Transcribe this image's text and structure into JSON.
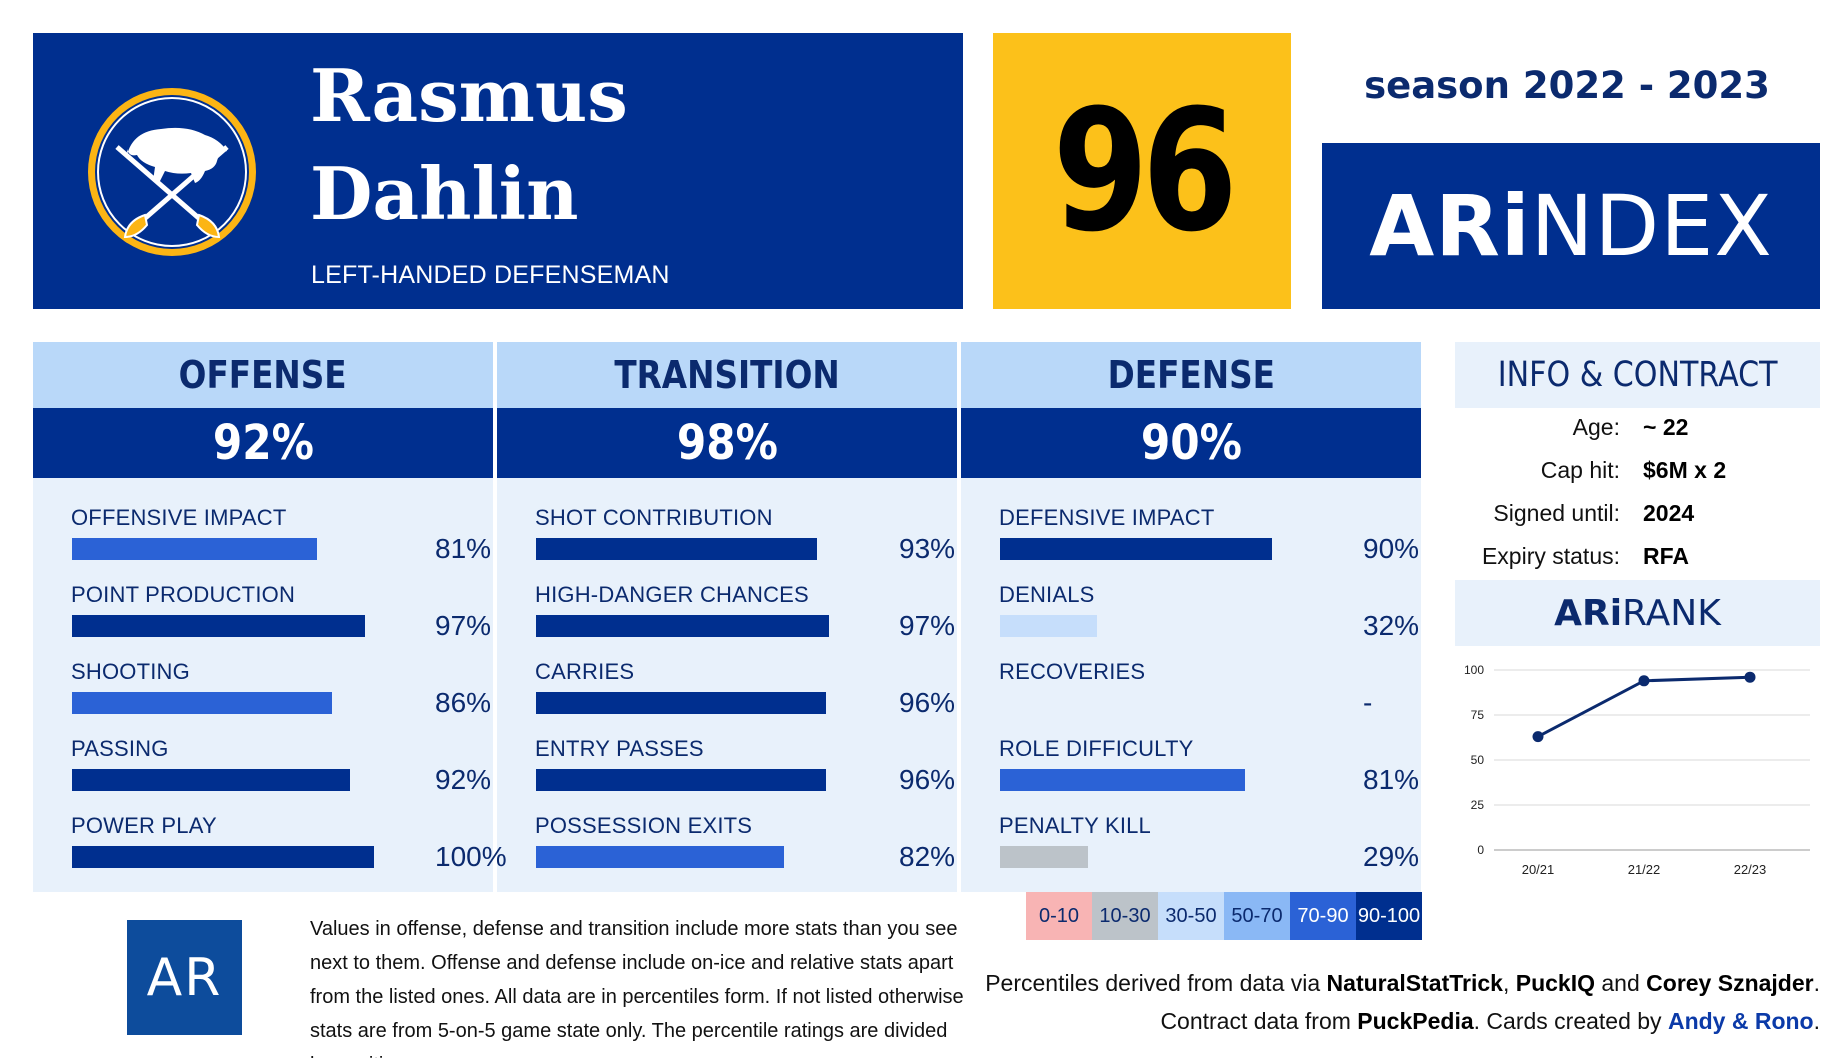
{
  "player": {
    "first_name": "Rasmus",
    "last_name": "Dahlin",
    "position": "LEFT-HANDED DEFENSEMAN"
  },
  "score": "96",
  "season": "season 2022 - 2023",
  "brand": {
    "ari": "ARi",
    "ndex": "NDEX"
  },
  "categories": [
    {
      "title": "OFFENSE",
      "score": "92%",
      "stats": [
        {
          "label": "OFFENSIVE IMPACT",
          "value": "81%",
          "pct": 81,
          "color": "#2b62d6"
        },
        {
          "label": "POINT PRODUCTION",
          "value": "97%",
          "pct": 97,
          "color": "#002f8f"
        },
        {
          "label": "SHOOTING",
          "value": "86%",
          "pct": 86,
          "color": "#2b62d6"
        },
        {
          "label": "PASSING",
          "value": "92%",
          "pct": 92,
          "color": "#002f8f"
        },
        {
          "label": "POWER PLAY",
          "value": "100%",
          "pct": 100,
          "color": "#002f8f"
        }
      ]
    },
    {
      "title": "TRANSITION",
      "score": "98%",
      "stats": [
        {
          "label": "SHOT CONTRIBUTION",
          "value": "93%",
          "pct": 93,
          "color": "#002f8f"
        },
        {
          "label": "HIGH-DANGER CHANCES",
          "value": "97%",
          "pct": 97,
          "color": "#002f8f"
        },
        {
          "label": "CARRIES",
          "value": "96%",
          "pct": 96,
          "color": "#002f8f"
        },
        {
          "label": "ENTRY PASSES",
          "value": "96%",
          "pct": 96,
          "color": "#002f8f"
        },
        {
          "label": "POSSESSION EXITS",
          "value": "82%",
          "pct": 82,
          "color": "#2b62d6"
        }
      ]
    },
    {
      "title": "DEFENSE",
      "score": "90%",
      "stats": [
        {
          "label": "DEFENSIVE IMPACT",
          "value": "90%",
          "pct": 90,
          "color": "#002f8f"
        },
        {
          "label": "DENIALS",
          "value": "32%",
          "pct": 32,
          "color": "#c6defb"
        },
        {
          "label": "RECOVERIES",
          "value": "-",
          "pct": 0,
          "color": "#e8f1fb"
        },
        {
          "label": "ROLE DIFFICULTY",
          "value": "81%",
          "pct": 81,
          "color": "#2b62d6"
        },
        {
          "label": "PENALTY KILL",
          "value": "29%",
          "pct": 29,
          "color": "#bcc3c9"
        }
      ]
    }
  ],
  "info": {
    "title": "INFO & CONTRACT",
    "rows": [
      {
        "key": "Age:",
        "value": "~ 22"
      },
      {
        "key": "Cap hit:",
        "value": "$6M x 2"
      },
      {
        "key": "Signed until:",
        "value": "2024"
      },
      {
        "key": "Expiry status:",
        "value": "RFA"
      }
    ]
  },
  "rank": {
    "ari": "ARi",
    "rank": "RANK"
  },
  "chart_data": {
    "type": "line",
    "title": "ARiRANK",
    "x": [
      "20/21",
      "21/22",
      "22/23"
    ],
    "series": [
      {
        "values": [
          63,
          94,
          96
        ]
      }
    ],
    "ylim": [
      0,
      100
    ],
    "yticks": [
      "0",
      "25",
      "50",
      "75",
      "100"
    ],
    "grid": true,
    "color": "#0b2a6e"
  },
  "legend": [
    {
      "label": "0-10",
      "bg": "#f8b4b4",
      "fg": "#0b2a6e"
    },
    {
      "label": "10-30",
      "bg": "#bcc3c9",
      "fg": "#0b2a6e"
    },
    {
      "label": "30-50",
      "bg": "#c6defb",
      "fg": "#0b2a6e"
    },
    {
      "label": "50-70",
      "bg": "#8ab8f5",
      "fg": "#0b2a6e"
    },
    {
      "label": "70-90",
      "bg": "#2b62d6",
      "fg": "#ffffff"
    },
    {
      "label": "90-100",
      "bg": "#002f8f",
      "fg": "#ffffff"
    }
  ],
  "footer": {
    "logo": "AR",
    "disclaimer": "Values in offense, defense and transition include more stats than you see next to them. Offense and defense include on-ice and relative stats apart from the listed ones. All data are in percentiles form. If not listed otherwise stats are from 5-on-5 game state only. The percentile ratings are divided by position.",
    "c1_pre": "Percentiles derived from data via ",
    "c1_a": "NaturalStatTrick",
    "c1_sep1": ", ",
    "c1_b": "PuckIQ",
    "c1_and": " and ",
    "c1_c": "Corey Sznajder",
    "c1_end": ".",
    "c2_pre": "Contract data from ",
    "c2_a": "PuckPedia",
    "c2_mid": ". Cards created by ",
    "c2_b": "Andy & Rono",
    "c2_end": "."
  }
}
